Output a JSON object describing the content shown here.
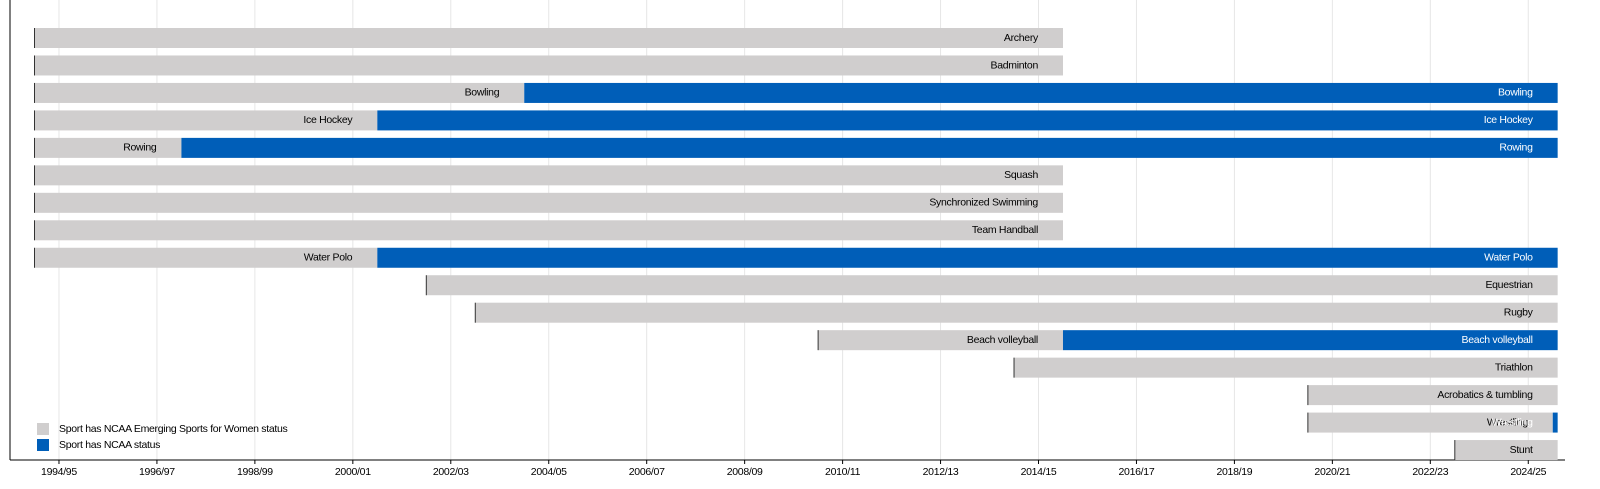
{
  "chart_data": {
    "type": "timeline",
    "categories": [
      "Archery",
      "Badminton",
      "Bowling",
      "Ice Hockey",
      "Rowing",
      "Squash",
      "Synchronized Swimming",
      "Team Handball",
      "Water Polo",
      "Equestrian",
      "Rugby",
      "Beach volleyball",
      "Triathlon",
      "Acrobatics & tumbling",
      "Wrestling",
      "Stunt"
    ],
    "series": [
      {
        "name": "Sport has NCAA Emerging Sports for Women status",
        "color": "#d0cece",
        "start": [
          1993.5,
          1993.5,
          1993.5,
          1993.5,
          1993.5,
          1993.5,
          1993.5,
          1993.5,
          1993.5,
          2001.5,
          2002.5,
          2009.5,
          2013.5,
          2019.5,
          2019.5,
          2022.5
        ],
        "end": [
          2014.5,
          2014.5,
          2003.5,
          2000.5,
          1996.5,
          2014.5,
          2014.5,
          2014.5,
          2000.5,
          2024.6,
          2024.6,
          2014.5,
          2024.6,
          2024.6,
          2024.5,
          2024.6
        ]
      },
      {
        "name": "Sport has NCAA status",
        "color": "#005eb8",
        "start": [
          null,
          null,
          2003.5,
          2000.5,
          1996.5,
          null,
          null,
          null,
          2000.5,
          null,
          null,
          2014.5,
          null,
          null,
          2024.5,
          null
        ],
        "end": [
          null,
          null,
          2024.6,
          2024.6,
          2024.6,
          null,
          null,
          null,
          2024.6,
          null,
          null,
          2024.6,
          null,
          null,
          2024.6,
          null
        ]
      }
    ],
    "xlim": [
      1993,
      2024.75
    ],
    "xticks": [
      {
        "value": 1994,
        "label": "1994/95"
      },
      {
        "value": 1996,
        "label": "1996/97"
      },
      {
        "value": 1998,
        "label": "1998/99"
      },
      {
        "value": 2000,
        "label": "2000/01"
      },
      {
        "value": 2002,
        "label": "2002/03"
      },
      {
        "value": 2004,
        "label": "2004/05"
      },
      {
        "value": 2006,
        "label": "2006/07"
      },
      {
        "value": 2008,
        "label": "2008/09"
      },
      {
        "value": 2010,
        "label": "2010/11"
      },
      {
        "value": 2012,
        "label": "2012/13"
      },
      {
        "value": 2014,
        "label": "2014/15"
      },
      {
        "value": 2016,
        "label": "2016/17"
      },
      {
        "value": 2018,
        "label": "2018/19"
      },
      {
        "value": 2020,
        "label": "2020/21"
      },
      {
        "value": 2022,
        "label": "2022/23"
      },
      {
        "value": 2024,
        "label": "2024/25"
      }
    ],
    "grid": true,
    "legend": "bottom-left"
  }
}
